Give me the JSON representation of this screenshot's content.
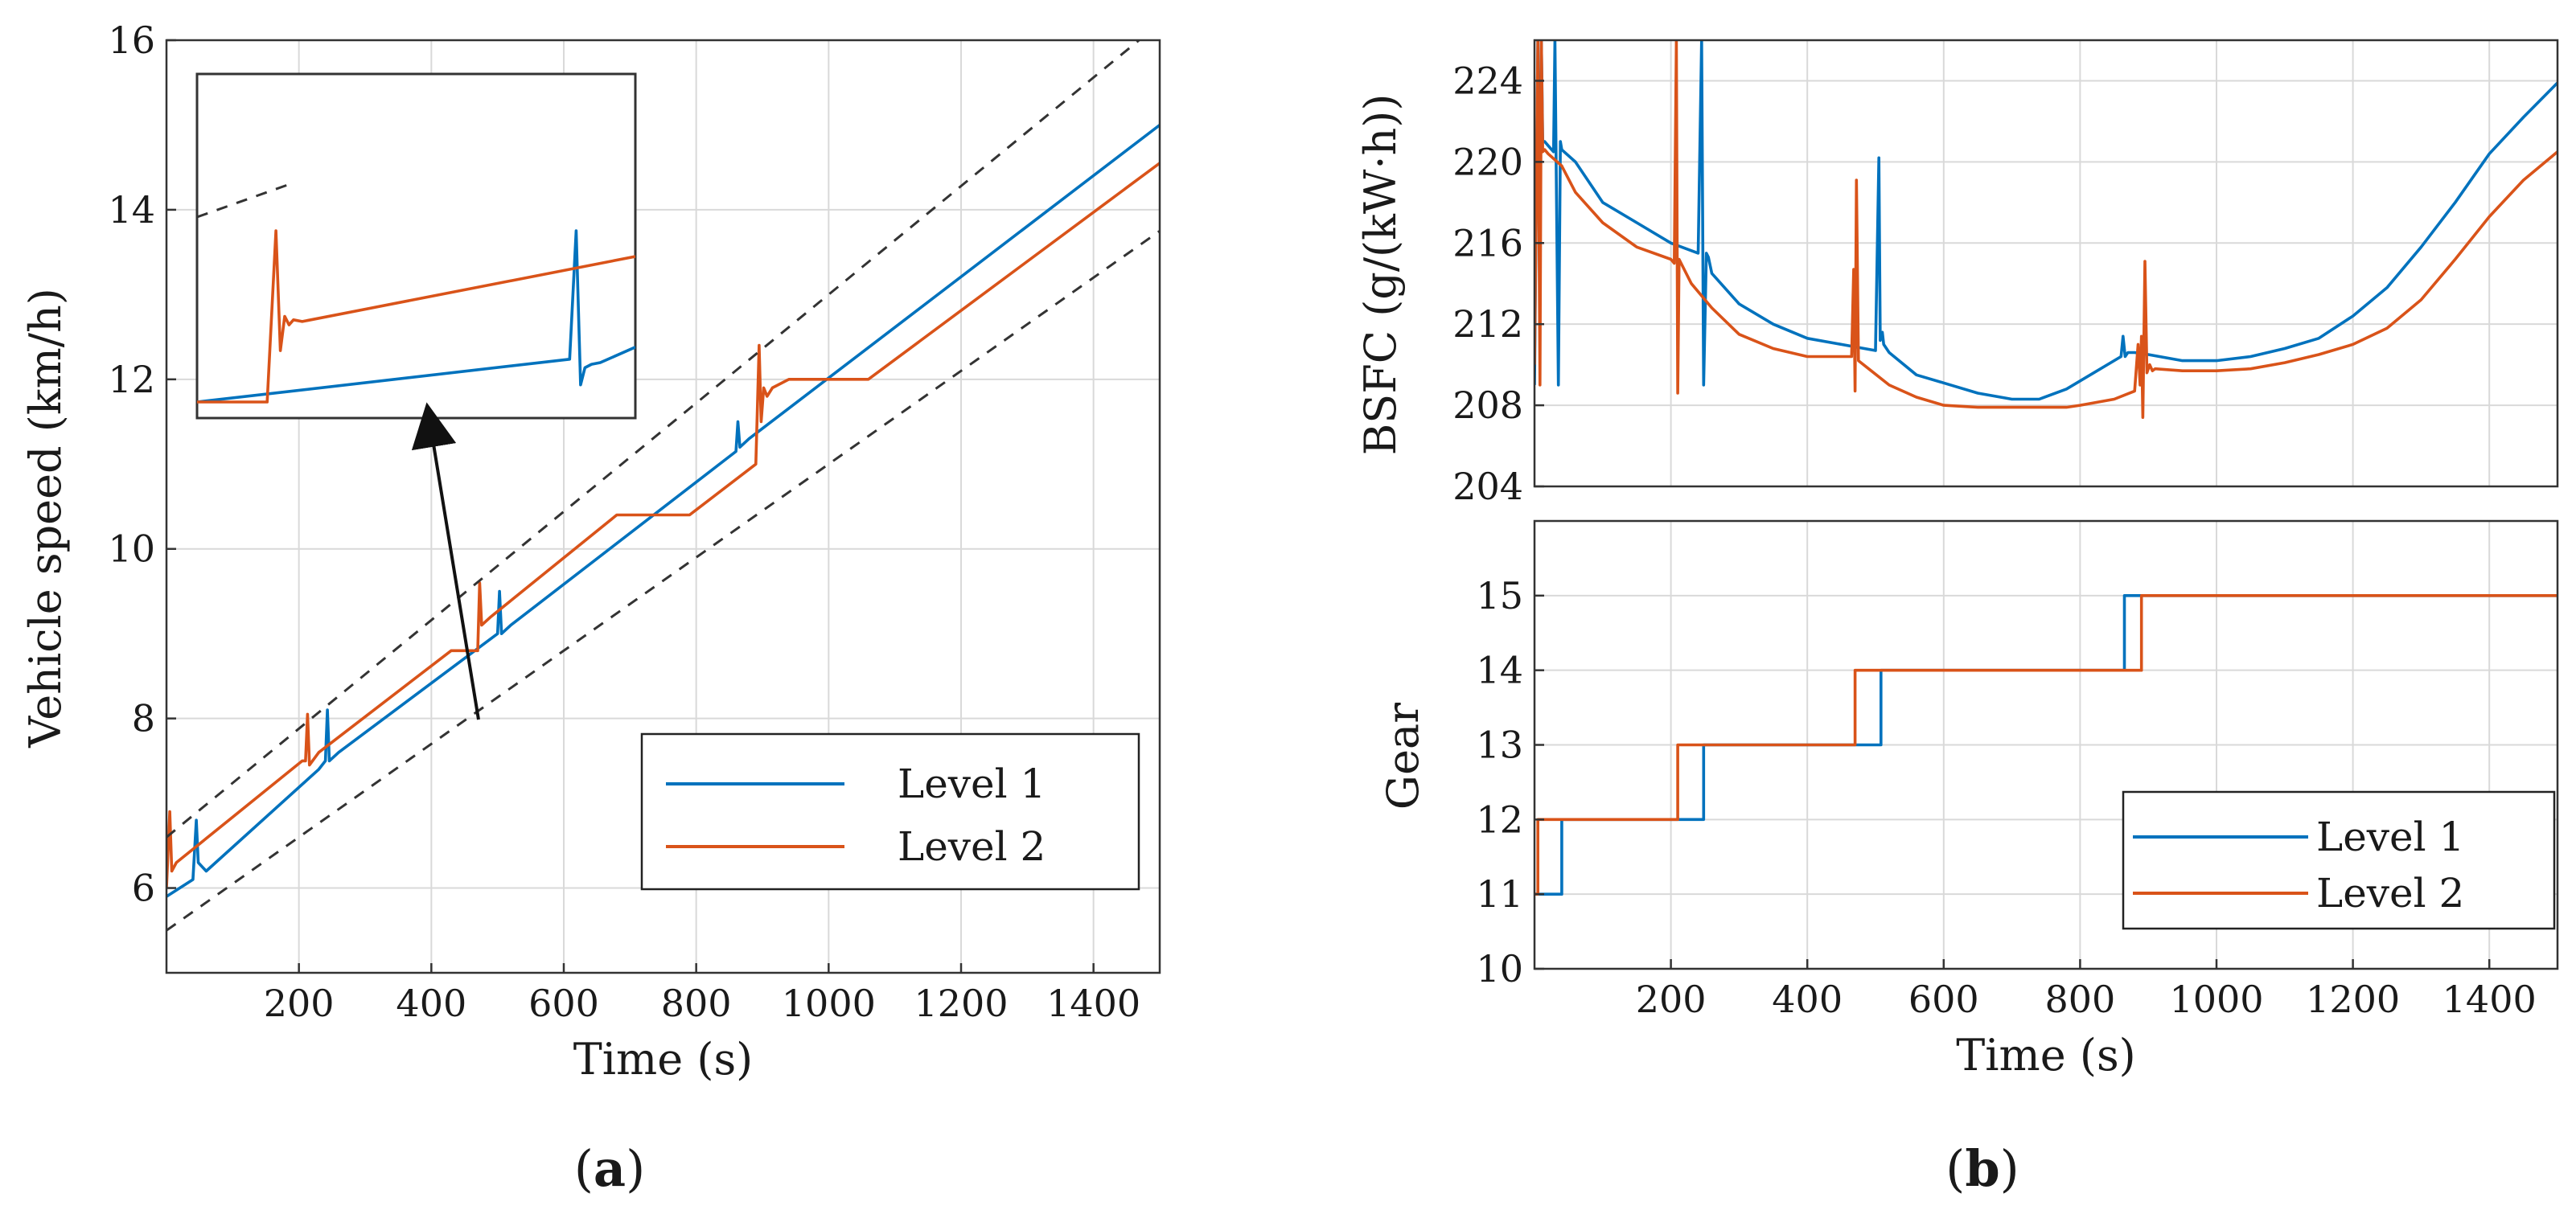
{
  "colors": {
    "level1": "#0072BD",
    "level2": "#D95319",
    "axis": "#333333",
    "grid": "#d9d9d9"
  },
  "chart_data": [
    {
      "panel": "a",
      "type": "line",
      "caption": "a",
      "xlabel": "Time (s)",
      "ylabel": "Vehicle speed (km/h)",
      "xlim": [
        0,
        1500
      ],
      "ylim": [
        5,
        16
      ],
      "xticks": [
        200,
        400,
        600,
        800,
        1000,
        1200,
        1400
      ],
      "yticks": [
        6,
        8,
        10,
        12,
        14,
        16
      ],
      "grid": true,
      "legend_position": "bottom-right",
      "series": [
        {
          "name": "Level 1",
          "color": "#0072BD",
          "x": [
            0,
            40,
            45,
            48,
            60,
            230,
            240,
            243,
            246,
            260,
            500,
            503,
            506,
            520,
            860,
            863,
            866,
            880,
            1500
          ],
          "y": [
            5.9,
            6.1,
            6.8,
            6.3,
            6.2,
            7.4,
            7.5,
            8.1,
            7.5,
            7.6,
            9.0,
            9.5,
            9.0,
            9.1,
            11.15,
            11.5,
            11.2,
            11.3,
            15.0
          ]
        },
        {
          "name": "Level 2",
          "color": "#D95319",
          "x": [
            0,
            5,
            8,
            15,
            205,
            210,
            213,
            216,
            230,
            430,
            465,
            470,
            473,
            476,
            490,
            680,
            790,
            890,
            895,
            898,
            902,
            907,
            915,
            940,
            1060,
            1500
          ],
          "y": [
            6.0,
            6.9,
            6.2,
            6.3,
            7.5,
            7.5,
            8.05,
            7.45,
            7.6,
            8.8,
            8.8,
            8.8,
            9.6,
            9.1,
            9.2,
            10.4,
            10.4,
            11.0,
            12.4,
            11.5,
            11.9,
            11.8,
            11.9,
            12.0,
            12.0,
            14.55
          ]
        },
        {
          "name": "Upper bound",
          "color": "#333333",
          "style": "dashed",
          "x": [
            0,
            1500
          ],
          "y": [
            6.6,
            16.2
          ]
        },
        {
          "name": "Lower bound",
          "color": "#333333",
          "style": "dashed",
          "x": [
            0,
            1500
          ],
          "y": [
            5.5,
            13.75
          ]
        }
      ],
      "inset": {
        "series": [
          {
            "name": "Level 1",
            "color": "#0072BD",
            "x": [
              0,
              85,
              86.5,
              87.5,
              88.5,
              90,
              92,
              100
            ],
            "y": [
              0.0,
              0.25,
              1.0,
              0.1,
              0.2,
              0.22,
              0.23,
              0.32
            ]
          },
          {
            "name": "Level 2",
            "color": "#D95319",
            "x": [
              0,
              16,
              18,
              19,
              20,
              21,
              22,
              24,
              100
            ],
            "y": [
              0.0,
              0.0,
              1.0,
              0.3,
              0.5,
              0.45,
              0.48,
              0.47,
              0.85
            ]
          },
          {
            "name": "Upper bound",
            "color": "#333333",
            "style": "dashed",
            "x": [
              0,
              22
            ],
            "y": [
              1.08,
              1.28
            ]
          }
        ],
        "note": "zoom of the 440–520 s region, axes unlabeled"
      }
    },
    {
      "panel": "b-top",
      "type": "line",
      "caption": "b",
      "xlabel": "",
      "ylabel": "BSFC (g/(kW·h))",
      "xlim": [
        0,
        1500
      ],
      "ylim": [
        204,
        226
      ],
      "xticks": [
        200,
        400,
        600,
        800,
        1000,
        1200,
        1400
      ],
      "yticks": [
        204,
        208,
        212,
        216,
        220,
        224
      ],
      "grid": true,
      "series": [
        {
          "name": "Level 1",
          "color": "#0072BD",
          "x": [
            0,
            5,
            8,
            10,
            12,
            15,
            20,
            28,
            30,
            35,
            38,
            40,
            60,
            100,
            150,
            200,
            240,
            245,
            248,
            252,
            255,
            260,
            300,
            350,
            400,
            450,
            500,
            505,
            507,
            510,
            512,
            520,
            560,
            600,
            650,
            700,
            740,
            780,
            820,
            860,
            863,
            866,
            870,
            880,
            900,
            950,
            1000,
            1050,
            1100,
            1150,
            1200,
            1250,
            1300,
            1350,
            1400,
            1450,
            1500
          ],
          "y": [
            209,
            226,
            215,
            226,
            221,
            221,
            220.8,
            220.5,
            226,
            209,
            221,
            220.6,
            220,
            218,
            217,
            216,
            215.5,
            226,
            209,
            215.5,
            215.3,
            214.5,
            213,
            212,
            211.3,
            211,
            210.7,
            220.2,
            211.2,
            211.6,
            211,
            210.6,
            209.5,
            209.1,
            208.6,
            208.3,
            208.3,
            208.8,
            209.6,
            210.4,
            211.4,
            210.4,
            210.6,
            210.6,
            210.5,
            210.2,
            210.2,
            210.4,
            210.8,
            211.3,
            212.4,
            213.8,
            215.8,
            218,
            220.4,
            222.2,
            223.9
          ]
        },
        {
          "name": "Level 2",
          "color": "#D95319",
          "x": [
            0,
            5,
            8,
            10,
            12,
            15,
            20,
            40,
            60,
            100,
            150,
            200,
            205,
            208,
            210,
            212,
            215,
            230,
            260,
            300,
            350,
            400,
            450,
            465,
            468,
            470,
            472,
            475,
            490,
            520,
            560,
            600,
            650,
            700,
            780,
            800,
            850,
            880,
            885,
            888,
            890,
            892,
            895,
            898,
            902,
            906,
            910,
            950,
            1000,
            1050,
            1100,
            1150,
            1200,
            1250,
            1300,
            1350,
            1400,
            1450,
            1500
          ],
          "y": [
            210,
            226,
            209,
            226,
            220.5,
            220.6,
            220.4,
            219.8,
            218.5,
            217,
            215.8,
            215.2,
            215,
            226,
            208.6,
            215.2,
            215,
            214,
            212.8,
            211.5,
            210.8,
            210.4,
            210.4,
            210.4,
            214.7,
            208.7,
            219.1,
            210.2,
            209.8,
            209,
            208.4,
            208,
            207.9,
            207.9,
            207.9,
            208,
            208.3,
            208.7,
            211,
            209,
            211.4,
            207.4,
            215.1,
            209.6,
            210.0,
            209.7,
            209.8,
            209.7,
            209.7,
            209.8,
            210.1,
            210.5,
            211,
            211.8,
            213.2,
            215.2,
            217.3,
            219.1,
            220.5
          ]
        }
      ]
    },
    {
      "panel": "b-bottom",
      "type": "line",
      "caption": "b",
      "xlabel": "Time (s)",
      "ylabel": "Gear",
      "xlim": [
        0,
        1500
      ],
      "ylim": [
        10,
        16
      ],
      "xticks": [
        200,
        400,
        600,
        800,
        1000,
        1200,
        1400
      ],
      "yticks": [
        10,
        11,
        12,
        13,
        14,
        15
      ],
      "grid": true,
      "legend_position": "bottom-right",
      "series": [
        {
          "name": "Level 1",
          "color": "#0072BD",
          "x": [
            0,
            40,
            40,
            248,
            248,
            508,
            508,
            865,
            865,
            1500
          ],
          "y": [
            11,
            11,
            12,
            12,
            13,
            13,
            14,
            14,
            15,
            15
          ]
        },
        {
          "name": "Level 2",
          "color": "#D95319",
          "x": [
            0,
            5,
            5,
            210,
            210,
            470,
            470,
            890,
            890,
            1500
          ],
          "y": [
            11,
            11,
            12,
            12,
            13,
            13,
            14,
            14,
            15,
            15
          ]
        }
      ]
    }
  ],
  "legend": {
    "level1": "Level 1",
    "level2": "Level 2"
  },
  "captions": {
    "a": "a",
    "b": "b"
  }
}
